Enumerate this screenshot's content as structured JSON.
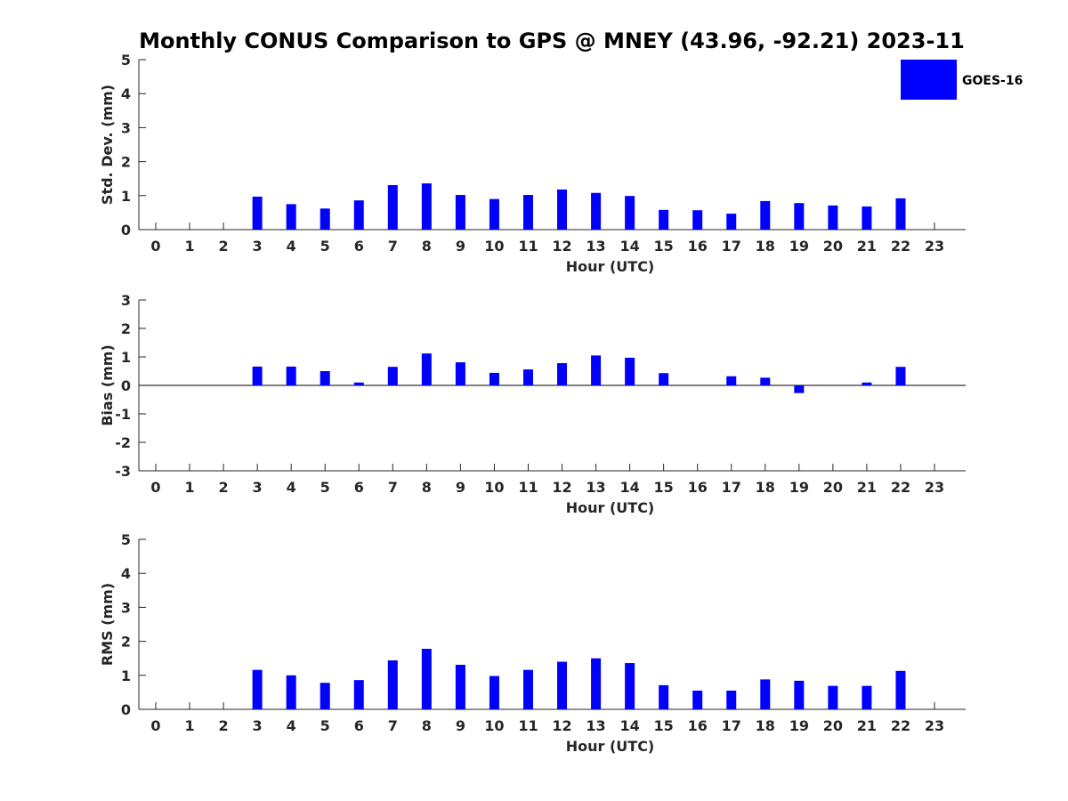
{
  "title": "Monthly CONUS Comparison to GPS @ MNEY (43.96, -92.21) 2023-11",
  "legend": {
    "label": "GOES-16",
    "color": "#0000ff"
  },
  "chart_data": [
    {
      "type": "bar",
      "series_name": "GOES-16",
      "categories": [
        "0",
        "1",
        "2",
        "3",
        "4",
        "5",
        "6",
        "7",
        "8",
        "9",
        "10",
        "11",
        "12",
        "13",
        "14",
        "15",
        "16",
        "17",
        "18",
        "19",
        "20",
        "21",
        "22",
        "23"
      ],
      "values": [
        null,
        null,
        null,
        0.97,
        0.75,
        0.62,
        0.86,
        1.31,
        1.36,
        1.02,
        0.9,
        1.02,
        1.18,
        1.08,
        0.99,
        0.58,
        0.57,
        0.47,
        0.84,
        0.78,
        0.71,
        0.68,
        0.92,
        null
      ],
      "xlabel": "Hour (UTC)",
      "ylabel": "Std. Dev. (mm)",
      "ylim": [
        0,
        5
      ],
      "yticks": [
        "0",
        "1",
        "2",
        "3",
        "4",
        "5"
      ],
      "color": "#0000ff"
    },
    {
      "type": "bar",
      "series_name": "GOES-16",
      "categories": [
        "0",
        "1",
        "2",
        "3",
        "4",
        "5",
        "6",
        "7",
        "8",
        "9",
        "10",
        "11",
        "12",
        "13",
        "14",
        "15",
        "16",
        "17",
        "18",
        "19",
        "20",
        "21",
        "22",
        "23"
      ],
      "values": [
        null,
        null,
        null,
        0.66,
        0.66,
        0.5,
        0.1,
        0.65,
        1.12,
        0.81,
        0.44,
        0.56,
        0.78,
        1.05,
        0.97,
        0.43,
        null,
        0.32,
        0.27,
        -0.27,
        null,
        0.1,
        0.65,
        null
      ],
      "xlabel": "Hour (UTC)",
      "ylabel": "Bias (mm)",
      "ylim": [
        -3,
        3
      ],
      "yticks": [
        "-3",
        "-2",
        "-1",
        "0",
        "1",
        "2",
        "3"
      ],
      "color": "#0000ff"
    },
    {
      "type": "bar",
      "series_name": "GOES-16",
      "categories": [
        "0",
        "1",
        "2",
        "3",
        "4",
        "5",
        "6",
        "7",
        "8",
        "9",
        "10",
        "11",
        "12",
        "13",
        "14",
        "15",
        "16",
        "17",
        "18",
        "19",
        "20",
        "21",
        "22",
        "23"
      ],
      "values": [
        null,
        null,
        null,
        1.16,
        1.0,
        0.78,
        0.86,
        1.44,
        1.78,
        1.31,
        0.98,
        1.16,
        1.4,
        1.5,
        1.36,
        0.71,
        0.55,
        0.55,
        0.88,
        0.84,
        0.69,
        0.69,
        1.13,
        null
      ],
      "xlabel": "Hour (UTC)",
      "ylabel": "RMS (mm)",
      "ylim": [
        0,
        5
      ],
      "yticks": [
        "0",
        "1",
        "2",
        "3",
        "4",
        "5"
      ],
      "color": "#0000ff"
    }
  ]
}
